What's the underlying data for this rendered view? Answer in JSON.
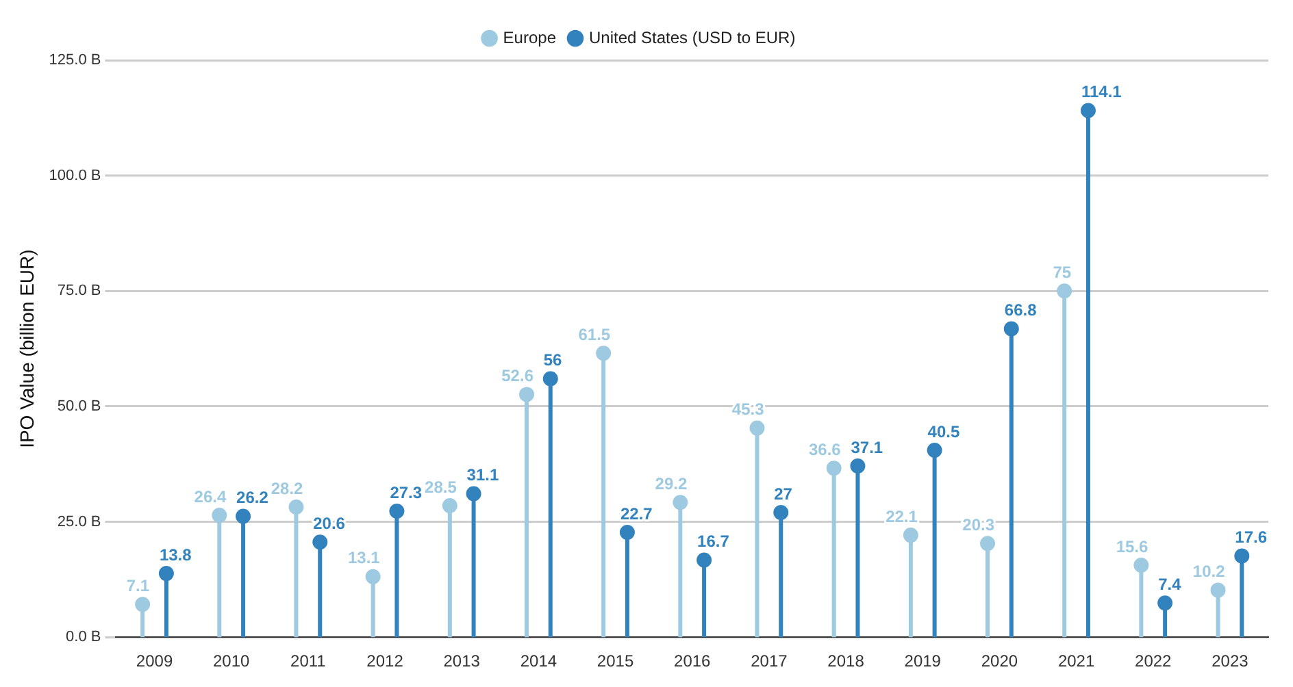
{
  "chart_data": {
    "type": "lollipop",
    "ylabel": "IPO Value (billion EUR)",
    "categories": [
      "2009",
      "2010",
      "2011",
      "2012",
      "2013",
      "2014",
      "2015",
      "2016",
      "2017",
      "2018",
      "2019",
      "2020",
      "2021",
      "2022",
      "2023"
    ],
    "series": [
      {
        "name": "Europe",
        "color": "#9ecae1",
        "values": [
          7.1,
          26.4,
          28.2,
          13.1,
          28.5,
          52.6,
          61.5,
          29.2,
          45.3,
          36.6,
          22.1,
          20.3,
          75,
          15.6,
          10.2
        ]
      },
      {
        "name": "United States (USD to EUR)",
        "color": "#3182bd",
        "values": [
          13.8,
          26.2,
          20.6,
          27.3,
          31.1,
          56,
          22.7,
          16.7,
          27,
          37.1,
          40.5,
          66.8,
          114.1,
          7.4,
          17.6
        ]
      }
    ],
    "ylim": [
      0,
      125
    ],
    "yticks": [
      {
        "value": 0,
        "label": "0.0 B"
      },
      {
        "value": 25,
        "label": "25.0 B"
      },
      {
        "value": 50,
        "label": "50.0 B"
      },
      {
        "value": 75,
        "label": "75.0 B"
      },
      {
        "value": 100,
        "label": "100.0 B"
      },
      {
        "value": 125,
        "label": "125.0 B"
      }
    ],
    "grid": "y",
    "legend": "top",
    "marker": "circle",
    "data_labels": true
  }
}
